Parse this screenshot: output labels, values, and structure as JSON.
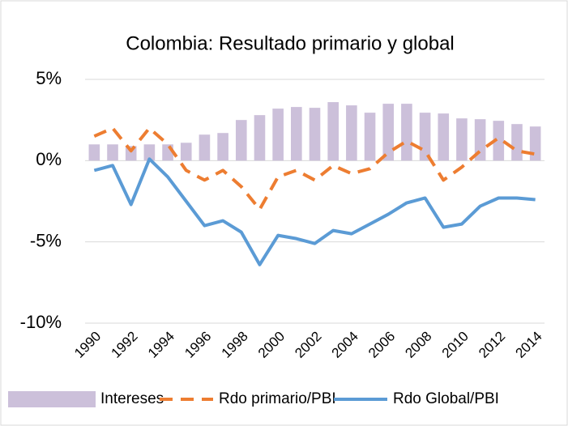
{
  "chart_data": {
    "type": "combo",
    "title": "Colombia: Resultado primario y global",
    "categories": [
      "1990",
      null,
      "1992",
      null,
      "1994",
      null,
      "1996",
      null,
      "1998",
      null,
      "2000",
      null,
      "2002",
      null,
      "2004",
      null,
      "2006",
      null,
      "2008",
      null,
      "2010",
      null,
      "2012",
      null,
      "2014"
    ],
    "series": [
      {
        "name": "Intereses",
        "type": "bar",
        "color": "#ccc0da",
        "values": [
          1.0,
          1.0,
          0.9,
          1.0,
          1.0,
          1.1,
          1.6,
          1.7,
          2.5,
          2.8,
          3.2,
          3.3,
          3.25,
          3.6,
          3.4,
          2.95,
          3.5,
          3.5,
          2.95,
          2.9,
          2.6,
          2.55,
          2.45,
          2.25,
          2.1
        ]
      },
      {
        "name": "Rdo primario/PBI",
        "type": "line",
        "line_style": "dashed",
        "color": "#ed7d31",
        "values": [
          1.5,
          2.0,
          0.6,
          2.0,
          1.0,
          -0.6,
          -1.2,
          -0.6,
          -1.6,
          -3.0,
          -1.0,
          -0.6,
          -1.2,
          -0.3,
          -0.8,
          -0.5,
          0.5,
          1.2,
          0.6,
          -1.2,
          -0.4,
          0.6,
          1.4,
          0.6,
          0.4
        ]
      },
      {
        "name": "Rdo Global/PBI",
        "type": "line",
        "line_style": "solid",
        "color": "#5b9bd5",
        "values": [
          -0.6,
          -0.3,
          -2.7,
          0.1,
          -1.0,
          -2.5,
          -4.0,
          -3.7,
          -4.4,
          -6.4,
          -4.6,
          -4.8,
          -5.1,
          -4.3,
          -4.5,
          -3.9,
          -3.3,
          -2.6,
          -2.3,
          -4.1,
          -3.9,
          -2.8,
          -2.3,
          -2.3,
          -2.4
        ]
      }
    ],
    "ylim": [
      -10,
      5
    ],
    "yticks": [
      {
        "value": 5,
        "label": "5%"
      },
      {
        "value": 0,
        "label": "0%"
      },
      {
        "value": -5,
        "label": "-5%"
      },
      {
        "value": -10,
        "label": "-10%"
      }
    ],
    "grid": true,
    "legend": "bottom"
  }
}
